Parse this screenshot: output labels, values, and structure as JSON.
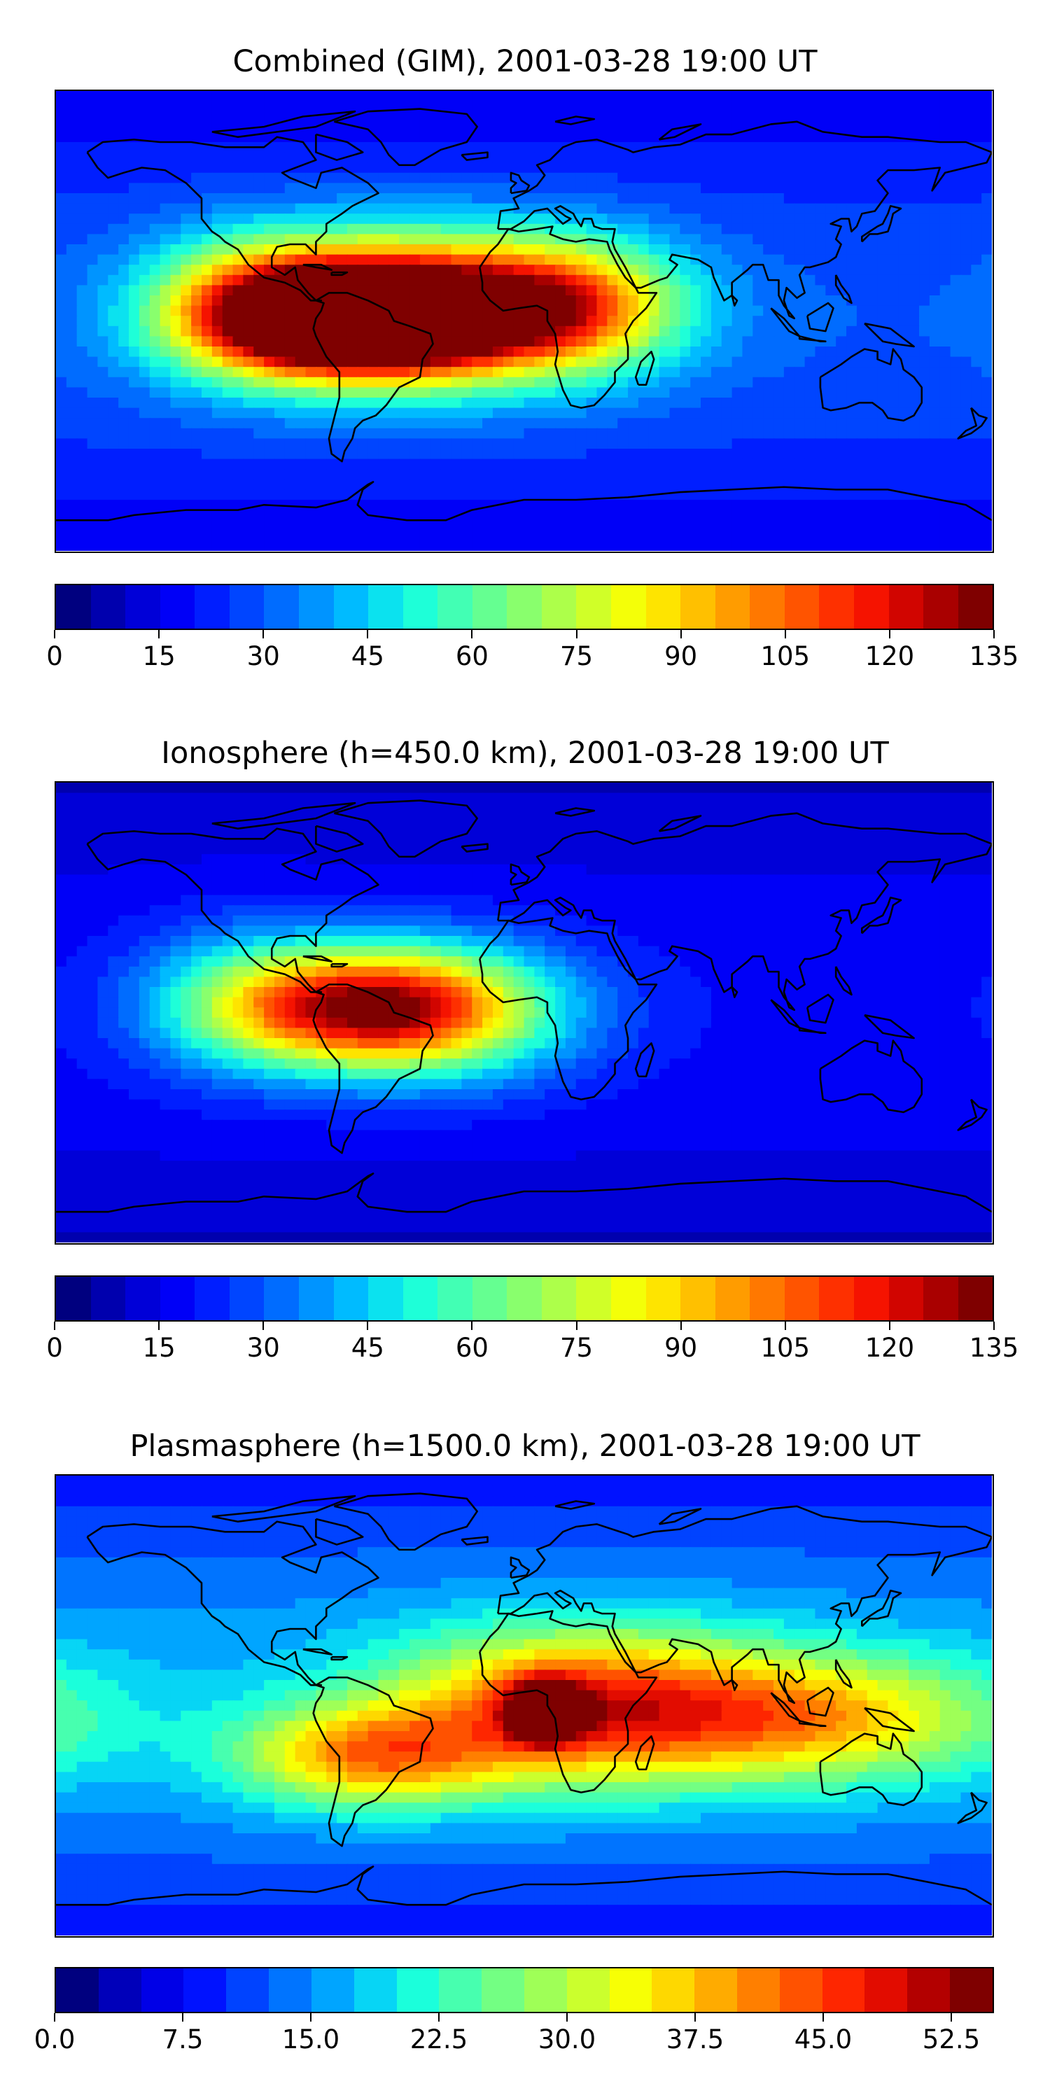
{
  "panels": [
    {
      "title": "Combined (GIM), 2001-03-28 19:00 UT",
      "colorbar": {
        "min": 0,
        "max": 135,
        "levels": 27,
        "tick_labels": [
          "0",
          "15",
          "30",
          "45",
          "60",
          "75",
          "90",
          "105",
          "120",
          "135"
        ]
      },
      "hotspots": [
        {
          "lon": -62,
          "lat": 1,
          "amp": 1.0,
          "rx": 52,
          "ry": 20
        },
        {
          "lon": -40,
          "lat": 5,
          "amp": 0.55,
          "rx": 70,
          "ry": 30
        },
        {
          "lon": 18,
          "lat": 6,
          "amp": 0.42,
          "rx": 42,
          "ry": 24
        },
        {
          "lon": -105,
          "lat": 5,
          "amp": 0.3,
          "rx": 40,
          "ry": 28
        }
      ],
      "background_level": 0.22
    },
    {
      "title": "Ionosphere  (h=450.0 km), 2001-03-28 19:00 UT",
      "colorbar": {
        "min": 0,
        "max": 135,
        "levels": 27,
        "tick_labels": [
          "0",
          "15",
          "30",
          "45",
          "60",
          "75",
          "90",
          "105",
          "120",
          "135"
        ]
      },
      "hotspots": [
        {
          "lon": -62,
          "lat": 2,
          "amp": 0.62,
          "rx": 55,
          "ry": 22
        },
        {
          "lon": -35,
          "lat": 0,
          "amp": 0.3,
          "rx": 55,
          "ry": 28
        },
        {
          "lon": -110,
          "lat": 5,
          "amp": 0.18,
          "rx": 40,
          "ry": 30
        }
      ],
      "background_level": 0.14
    },
    {
      "title": "Plasmasphere (h=1500.0 km), 2001-03-28 19:00 UT",
      "colorbar": {
        "min": 0,
        "max": 55,
        "levels": 22,
        "tick_labels": [
          "0.0",
          "7.5",
          "15.0",
          "22.5",
          "30.0",
          "37.5",
          "45.0",
          "52.5"
        ],
        "tick_values": [
          0,
          7.5,
          15,
          22.5,
          30,
          37.5,
          45,
          52.5
        ]
      },
      "hotspots": [
        {
          "lon": 8,
          "lat": -2,
          "amp": 0.55,
          "rx": 14,
          "ry": 12
        },
        {
          "lon": 20,
          "lat": 0,
          "amp": 0.5,
          "rx": 70,
          "ry": 30
        },
        {
          "lon": -60,
          "lat": -20,
          "amp": 0.42,
          "rx": 50,
          "ry": 20
        },
        {
          "lon": 110,
          "lat": -5,
          "amp": 0.38,
          "rx": 75,
          "ry": 25
        }
      ],
      "background_level": 0.3
    }
  ],
  "colors": {
    "jet": [
      "#00007f",
      "#0000cc",
      "#0000ff",
      "#0040ff",
      "#0080ff",
      "#00c0ff",
      "#15ffe1",
      "#4fffa7",
      "#89ff6d",
      "#c3ff34",
      "#fdff00",
      "#ffc400",
      "#ff8a00",
      "#ff4f00",
      "#fe1600",
      "#c30000",
      "#7f0000"
    ],
    "coastline": "#000000"
  }
}
